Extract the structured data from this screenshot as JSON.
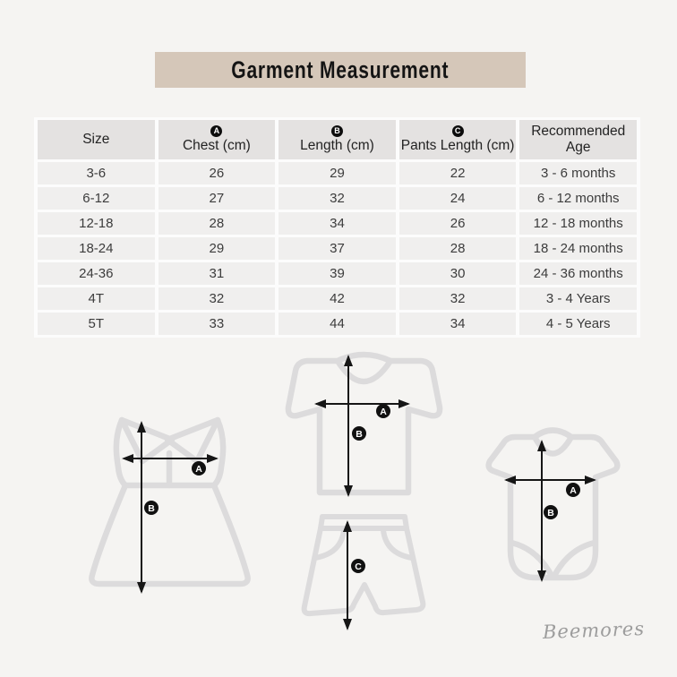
{
  "page": {
    "brand_signature": "Beemores"
  },
  "title": {
    "text": "Garment Measurement"
  },
  "table": {
    "columns": [
      {
        "label": "Size",
        "marker": ""
      },
      {
        "label": "Chest (cm)",
        "marker": "A"
      },
      {
        "label": "Length (cm)",
        "marker": "B"
      },
      {
        "label": "Pants Length (cm)",
        "marker": "C"
      },
      {
        "label": "Recommended Age",
        "marker": ""
      }
    ],
    "rows": [
      {
        "size": "3-6",
        "chest": "26",
        "length": "29",
        "pants": "22",
        "age": "3 - 6 months"
      },
      {
        "size": "6-12",
        "chest": "27",
        "length": "32",
        "pants": "24",
        "age": "6 - 12 months"
      },
      {
        "size": "12-18",
        "chest": "28",
        "length": "34",
        "pants": "26",
        "age": "12 - 18 months"
      },
      {
        "size": "18-24",
        "chest": "29",
        "length": "37",
        "pants": "28",
        "age": "18 - 24 months"
      },
      {
        "size": "24-36",
        "chest": "31",
        "length": "39",
        "pants": "30",
        "age": "24 - 36 months"
      },
      {
        "size": "4T",
        "chest": "32",
        "length": "42",
        "pants": "32",
        "age": "3 - 4 Years"
      },
      {
        "size": "5T",
        "chest": "33",
        "length": "44",
        "pants": "34",
        "age": "4 - 5 Years"
      }
    ]
  },
  "diagram": {
    "markers": {
      "chest": "A",
      "length": "B",
      "pants": "C"
    },
    "garments": [
      "dress",
      "t-shirt",
      "shorts",
      "bodysuit"
    ]
  },
  "colors": {
    "page_background": "#f5f4f2",
    "banner": "#d5c7b9",
    "header_cell": "#e4e2e1",
    "data_cell": "#f0efee",
    "garment_outline": "#dcdbdc",
    "arrow": "#161616",
    "signature_text": "#9d9d9d"
  }
}
